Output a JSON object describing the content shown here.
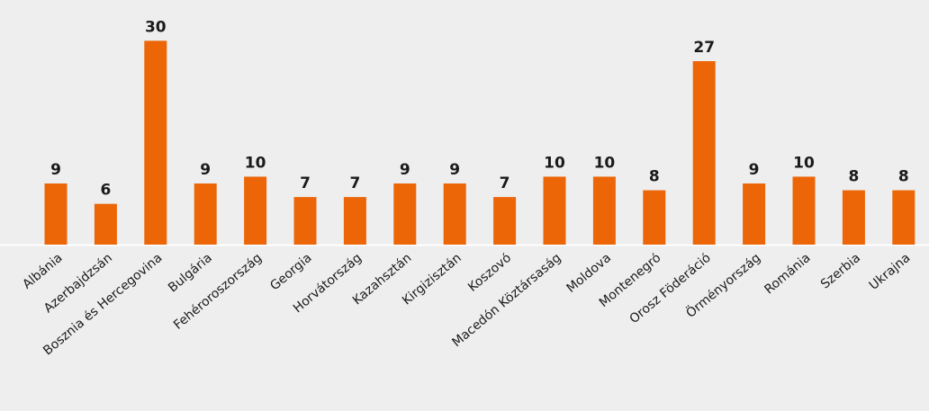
{
  "chart_data": {
    "type": "bar",
    "categories": [
      "Albánia",
      "Azerbajdzsán",
      "Bosznia és Hercegovina",
      "Bulgária",
      "Fehéroroszország",
      "Georgia",
      "Horvátország",
      "Kazahsztán",
      "Kirgizisztán",
      "Koszovó",
      "Macedón Köztársaság",
      "Moldova",
      "Montenegró",
      "Orosz Föderáció",
      "Örményország",
      "Románia",
      "Szerbia",
      "Ukrajna"
    ],
    "values": [
      9,
      6,
      30,
      9,
      10,
      7,
      7,
      9,
      9,
      7,
      10,
      10,
      8,
      27,
      9,
      10,
      8,
      8
    ],
    "color": "#ec6608",
    "ylim": [
      0,
      36
    ]
  }
}
